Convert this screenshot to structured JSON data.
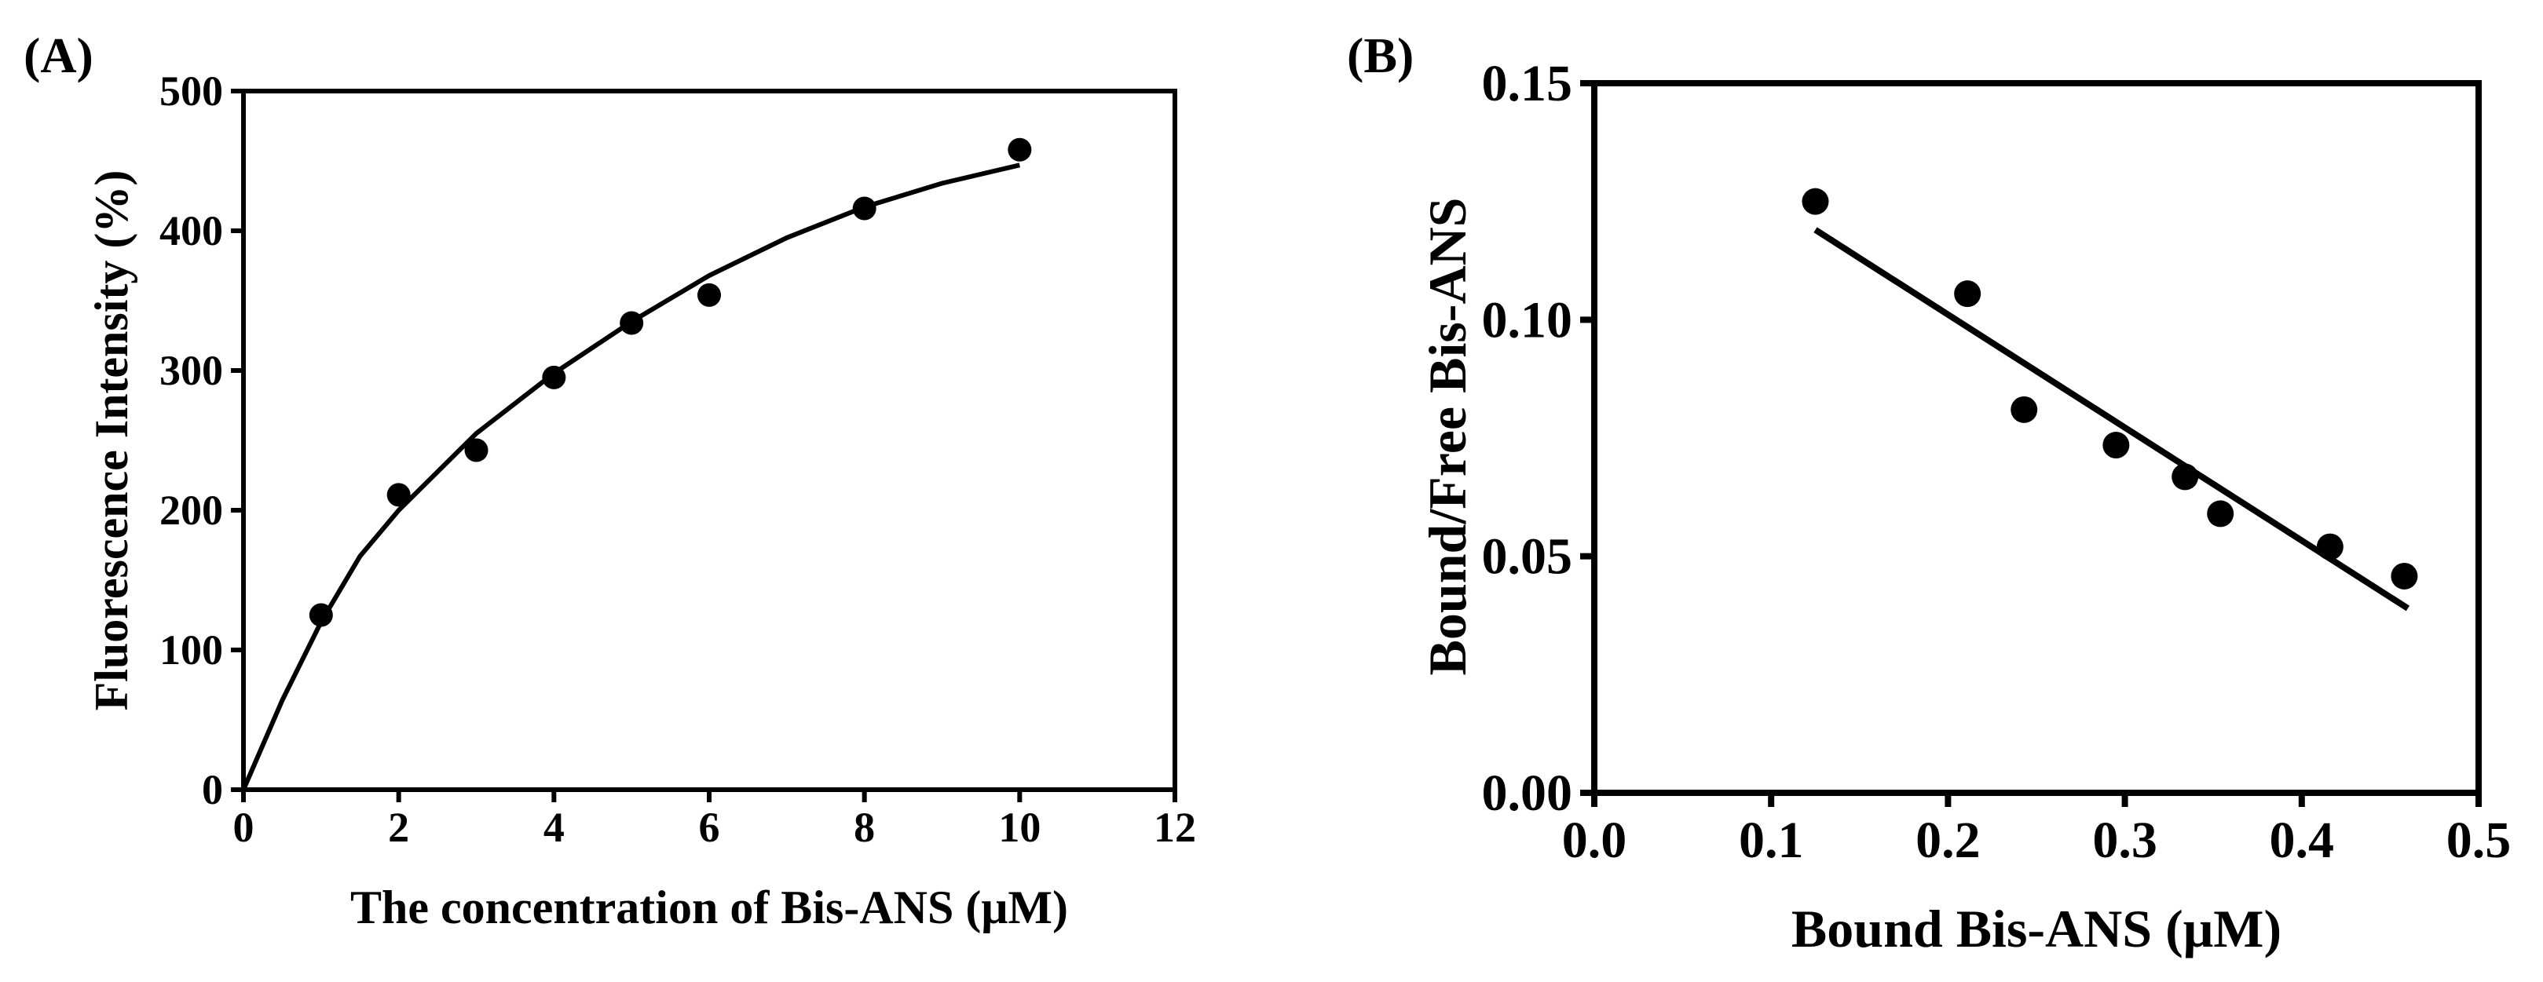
{
  "chart_data": [
    {
      "panel_label": "(A)",
      "type": "scatter",
      "xlabel": "The concentration of Bis-ANS (μM)",
      "ylabel": "Fluorescence Intensity (%)",
      "xlim": [
        0,
        12
      ],
      "ylim": [
        0,
        500
      ],
      "xticks": [
        "0",
        "2",
        "4",
        "6",
        "8",
        "10",
        "12"
      ],
      "yticks": [
        "0",
        "100",
        "200",
        "300",
        "400",
        "500"
      ],
      "grid": false,
      "points": [
        {
          "x": 1,
          "y": 125
        },
        {
          "x": 2,
          "y": 211
        },
        {
          "x": 3,
          "y": 243
        },
        {
          "x": 4,
          "y": 295
        },
        {
          "x": 5,
          "y": 334
        },
        {
          "x": 6,
          "y": 354
        },
        {
          "x": 8,
          "y": 416
        },
        {
          "x": 10,
          "y": 458
        }
      ],
      "fit_curve": {
        "model": "hyperbolic",
        "points": [
          {
            "x": 0,
            "y": 0
          },
          {
            "x": 0.5,
            "y": 64
          },
          {
            "x": 1,
            "y": 120
          },
          {
            "x": 1.5,
            "y": 167
          },
          {
            "x": 2,
            "y": 200
          },
          {
            "x": 3,
            "y": 255
          },
          {
            "x": 4,
            "y": 298
          },
          {
            "x": 5,
            "y": 335
          },
          {
            "x": 6,
            "y": 368
          },
          {
            "x": 7,
            "y": 395
          },
          {
            "x": 8,
            "y": 417
          },
          {
            "x": 9,
            "y": 434
          },
          {
            "x": 10,
            "y": 447
          }
        ]
      }
    },
    {
      "panel_label": "(B)",
      "type": "scatter",
      "xlabel": "Bound Bis-ANS (μM)",
      "ylabel": "Bound/Free Bis-ANS",
      "xlim": [
        0.0,
        0.5
      ],
      "ylim": [
        0.0,
        0.15
      ],
      "xticks": [
        "0.0",
        "0.1",
        "0.2",
        "0.3",
        "0.4",
        "0.5"
      ],
      "yticks": [
        "0.00",
        "0.05",
        "0.10",
        "0.15"
      ],
      "grid": false,
      "points": [
        {
          "x": 0.125,
          "y": 0.125
        },
        {
          "x": 0.211,
          "y": 0.1055
        },
        {
          "x": 0.243,
          "y": 0.081
        },
        {
          "x": 0.295,
          "y": 0.0735
        },
        {
          "x": 0.334,
          "y": 0.0668
        },
        {
          "x": 0.354,
          "y": 0.059
        },
        {
          "x": 0.416,
          "y": 0.052
        },
        {
          "x": 0.458,
          "y": 0.0458
        }
      ],
      "fit_line": {
        "model": "linear",
        "points": [
          {
            "x": 0.125,
            "y": 0.119
          },
          {
            "x": 0.46,
            "y": 0.039
          }
        ]
      }
    }
  ]
}
